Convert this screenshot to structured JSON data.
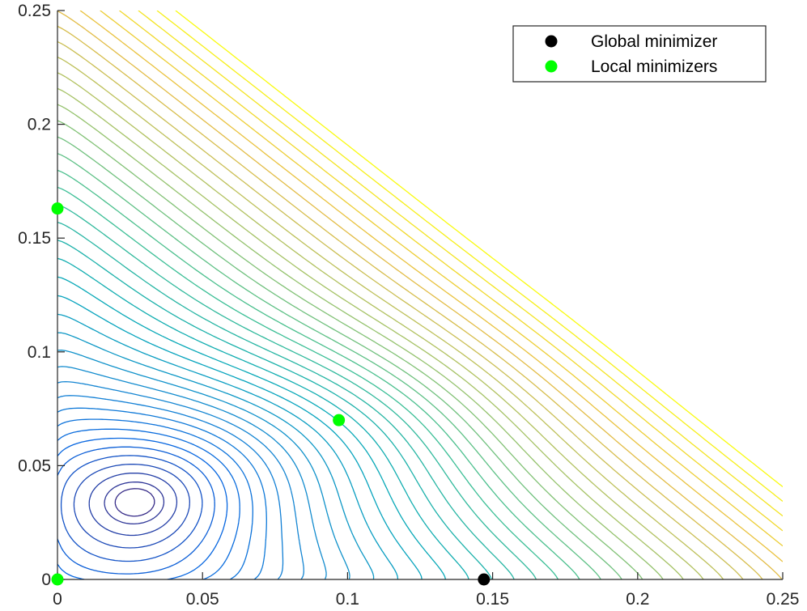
{
  "chart_data": {
    "type": "contour",
    "title": "",
    "xlabel": "",
    "ylabel": "",
    "xlim": [
      0,
      0.25
    ],
    "ylim": [
      0,
      0.25
    ],
    "x_ticks": [
      "0",
      "0.05",
      "0.1",
      "0.15",
      "0.2",
      "0.25"
    ],
    "y_ticks": [
      "0",
      "0.05",
      "0.1",
      "0.15",
      "0.2",
      "0.25"
    ],
    "x_tick_values": [
      0,
      0.05,
      0.1,
      0.15,
      0.2,
      0.25
    ],
    "y_tick_values": [
      0,
      0.05,
      0.1,
      0.15,
      0.2,
      0.25
    ],
    "colormap": "parula",
    "grid": false,
    "legend_placement": "top-right",
    "series": [
      {
        "name": "Global minimizer",
        "color": "#000000",
        "points": [
          {
            "x": 0.147,
            "y": 0.0
          }
        ]
      },
      {
        "name": "Local minimizers",
        "color": "#00ff00",
        "points": [
          {
            "x": 0.0,
            "y": 0.163
          },
          {
            "x": 0.097,
            "y": 0.07
          },
          {
            "x": 0.0,
            "y": 0.0
          }
        ]
      }
    ]
  }
}
